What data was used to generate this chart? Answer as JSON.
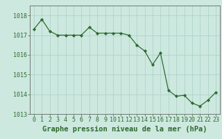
{
  "hours": [
    0,
    1,
    2,
    3,
    4,
    5,
    6,
    7,
    8,
    9,
    10,
    11,
    12,
    13,
    14,
    15,
    16,
    17,
    18,
    19,
    20,
    21,
    22,
    23
  ],
  "pressure": [
    1017.3,
    1017.8,
    1017.2,
    1017.0,
    1017.0,
    1017.0,
    1017.0,
    1017.4,
    1017.1,
    1017.1,
    1017.1,
    1017.1,
    1017.0,
    1016.5,
    1016.2,
    1015.5,
    1016.1,
    1014.2,
    1013.9,
    1013.95,
    1013.55,
    1013.4,
    1013.7,
    1014.1
  ],
  "ylim": [
    1013.0,
    1018.5
  ],
  "yticks": [
    1013,
    1014,
    1015,
    1016,
    1017,
    1018
  ],
  "xticks": [
    0,
    1,
    2,
    3,
    4,
    5,
    6,
    7,
    8,
    9,
    10,
    11,
    12,
    13,
    14,
    15,
    16,
    17,
    18,
    19,
    20,
    21,
    22,
    23
  ],
  "line_color": "#2d6a2d",
  "marker_color": "#2d6a2d",
  "bg_color": "#cce8df",
  "grid_color": "#aacfc7",
  "axis_color": "#666666",
  "xlabel": "Graphe pression niveau de la mer (hPa)",
  "xlabel_fontsize": 7.5,
  "tick_fontsize": 6.0
}
